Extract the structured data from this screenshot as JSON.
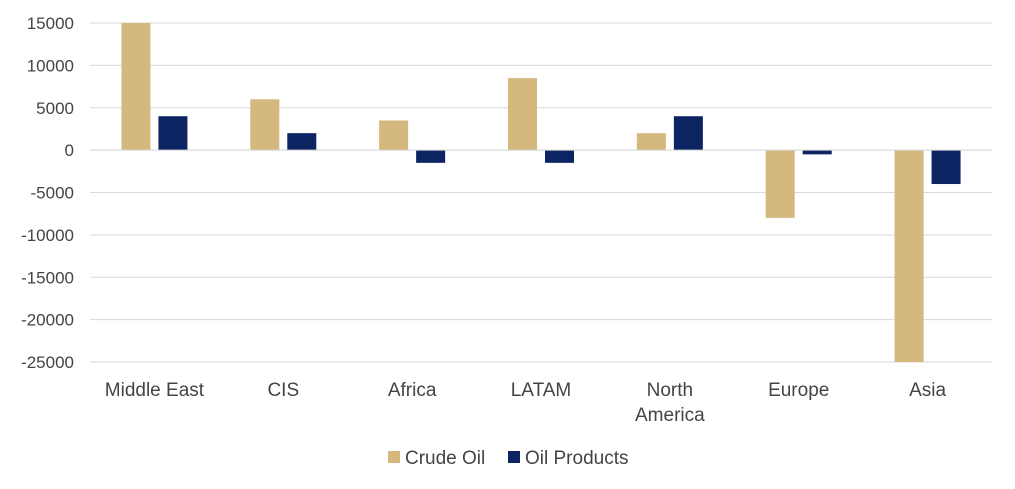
{
  "chart_data": {
    "type": "bar",
    "categories": [
      [
        "Middle East"
      ],
      [
        "CIS"
      ],
      [
        "Africa"
      ],
      [
        "LATAM"
      ],
      [
        "North",
        "America"
      ],
      [
        "Europe"
      ],
      [
        "Asia"
      ]
    ],
    "series": [
      {
        "name": "Crude Oil",
        "color": "#d4b87e",
        "values": [
          15000,
          6000,
          3500,
          8500,
          2000,
          -8000,
          -25000
        ]
      },
      {
        "name": "Oil Products",
        "color": "#0c2461",
        "values": [
          4000,
          2000,
          -1500,
          -1500,
          4000,
          -500,
          -4000
        ]
      }
    ],
    "yticks": [
      15000,
      10000,
      5000,
      0,
      -5000,
      -10000,
      -15000,
      -20000,
      -25000
    ],
    "ylim": [
      -25000,
      15000
    ],
    "grid": true,
    "legend_position": "bottom"
  }
}
